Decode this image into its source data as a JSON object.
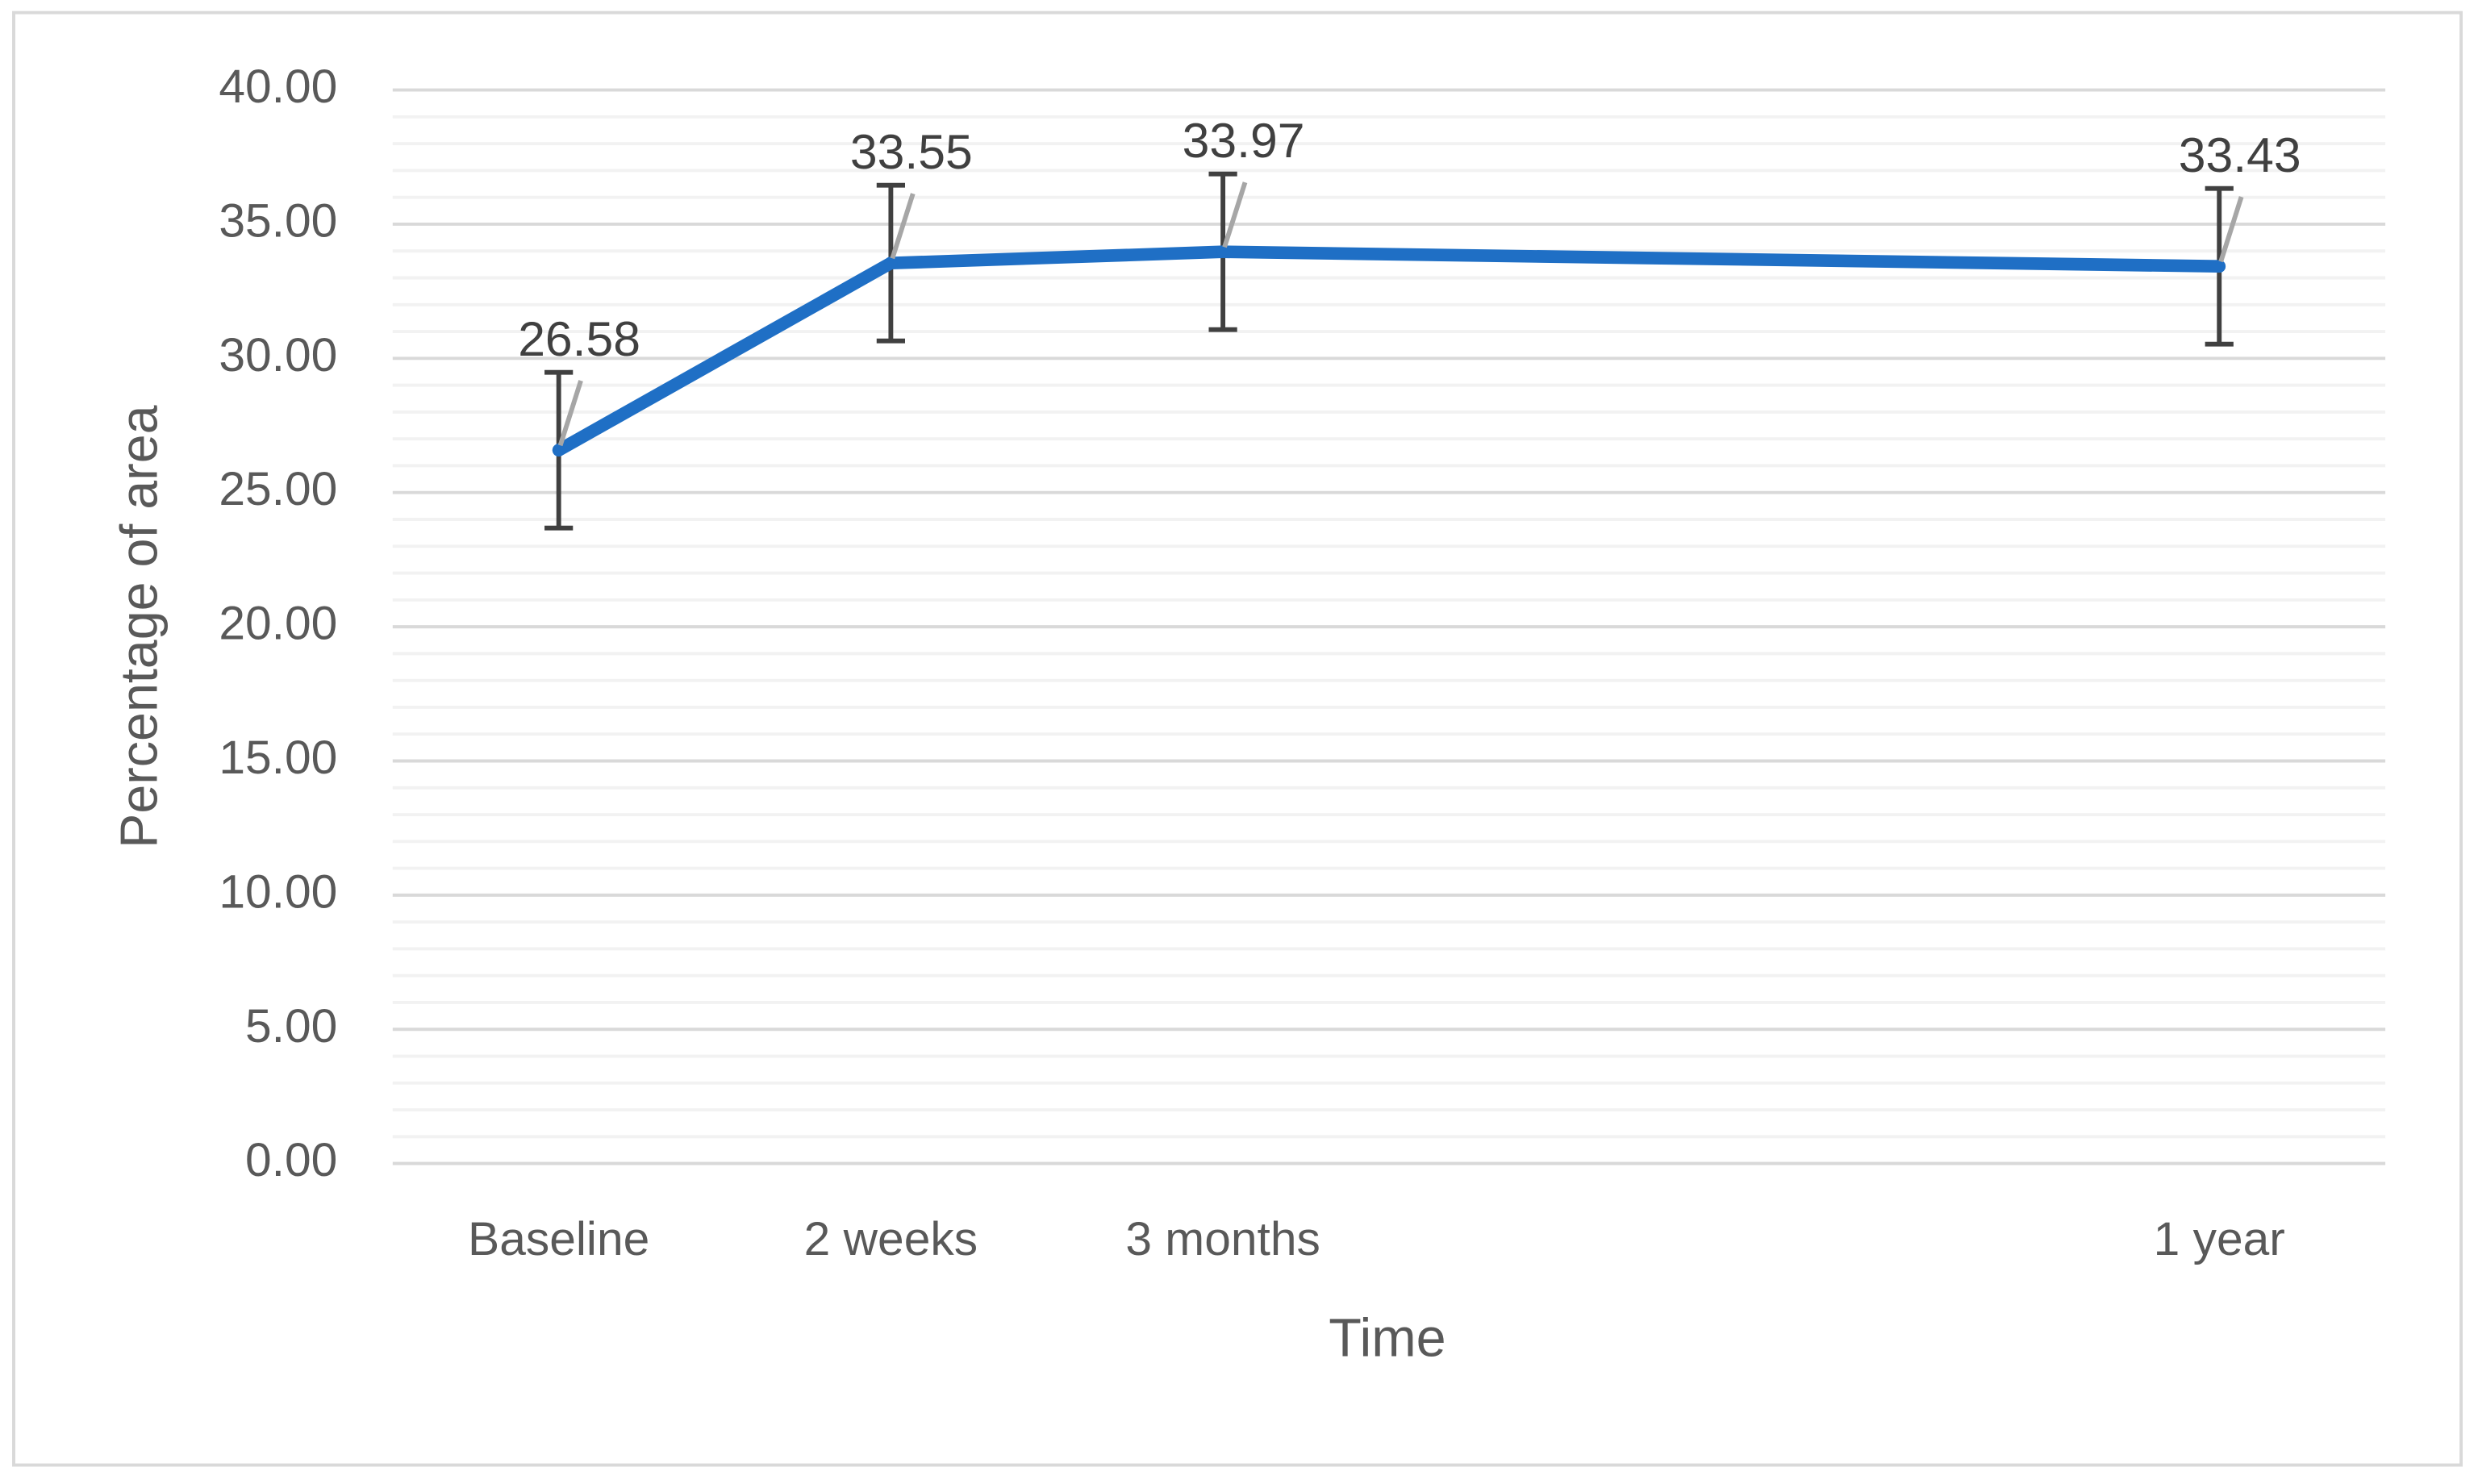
{
  "chart_data": {
    "type": "line",
    "x_label": "Time",
    "y_label": "Percentage of area",
    "categories": [
      "Baseline",
      "2 weeks",
      "3 months",
      null,
      null,
      "1 year"
    ],
    "series": [
      {
        "color": "#1f6fc5",
        "values": [
          26.58,
          33.55,
          33.97,
          null,
          null,
          33.43
        ],
        "errors": [
          2.9,
          2.9,
          2.9,
          null,
          null,
          2.9
        ]
      }
    ],
    "connect_gaps": true,
    "ylim": [
      0,
      40
    ],
    "yticks": [
      {
        "value": 0,
        "label": "0.00"
      },
      {
        "value": 5,
        "label": "5.00"
      },
      {
        "value": 10,
        "label": "10.00"
      },
      {
        "value": 15,
        "label": "15.00"
      },
      {
        "value": 20,
        "label": "20.00"
      },
      {
        "value": 25,
        "label": "25.00"
      },
      {
        "value": 30,
        "label": "30.00"
      },
      {
        "value": 35,
        "label": "35.00"
      },
      {
        "value": 40,
        "label": "40.00"
      }
    ],
    "minor_yticks": [
      1,
      2,
      3,
      4,
      6,
      7,
      8,
      9,
      11,
      12,
      13,
      14,
      16,
      17,
      18,
      19,
      21,
      22,
      23,
      24,
      26,
      27,
      28,
      29,
      31,
      32,
      33,
      34,
      36,
      37,
      38,
      39
    ],
    "grid": true
  }
}
